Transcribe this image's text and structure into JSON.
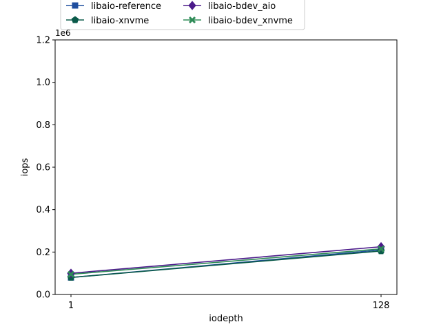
{
  "chart_data": {
    "type": "line",
    "xlabel": "iodepth",
    "ylabel": "iops",
    "y_offset_text": "1e6",
    "x": [
      1,
      128
    ],
    "x_tick_labels": [
      "1",
      "128"
    ],
    "ylim": [
      0,
      1.2
    ],
    "y_ticks": [
      0.0,
      0.2,
      0.4,
      0.6,
      0.8,
      1.0,
      1.2
    ],
    "y_tick_labels": [
      "0.0",
      "0.2",
      "0.4",
      "0.6",
      "0.8",
      "1.0",
      "1.2"
    ],
    "grid": false,
    "legend_placement": "top-left, above plot, 2 columns",
    "series": [
      {
        "name": "libaio-reference",
        "values": [
          0.08,
          0.21
        ],
        "color": "#1f4e9e",
        "marker": "square"
      },
      {
        "name": "libaio-xnvme",
        "values": [
          0.08,
          0.205
        ],
        "color": "#0b5a4a",
        "marker": "pentagon"
      },
      {
        "name": "libaio-bdev_aio",
        "values": [
          0.1,
          0.225
        ],
        "color": "#4b1a8a",
        "marker": "diamond"
      },
      {
        "name": "libaio-bdev_xnvme",
        "values": [
          0.095,
          0.215
        ],
        "color": "#2e8b57",
        "marker": "x"
      }
    ]
  }
}
